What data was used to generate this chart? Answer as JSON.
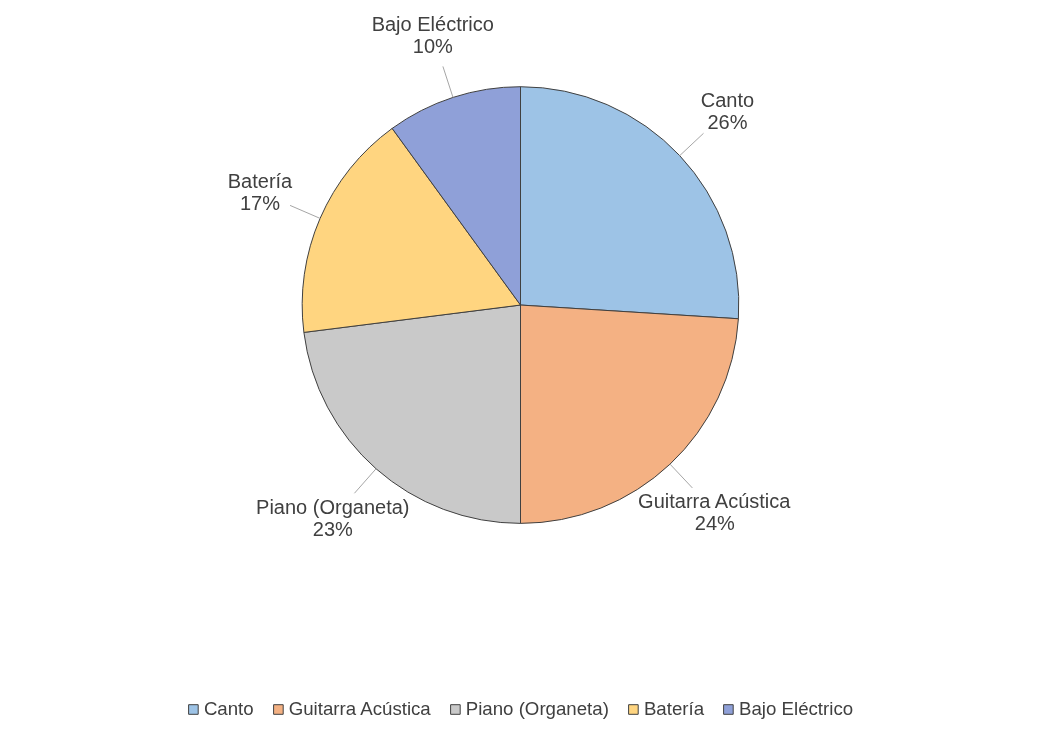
{
  "chart_data": {
    "type": "pie",
    "categories": [
      "Canto",
      "Guitarra Acústica",
      "Piano (Organeta)",
      "Batería",
      "Bajo Eléctrico"
    ],
    "values": [
      26,
      24,
      23,
      17,
      10
    ],
    "colors": [
      "#9dc3e6",
      "#f4b183",
      "#c9c9c9",
      "#ffd580",
      "#8fa0d8"
    ],
    "value_labels": [
      "26%",
      "24%",
      "23%",
      "17%",
      "10%"
    ],
    "legend": "bottom"
  }
}
